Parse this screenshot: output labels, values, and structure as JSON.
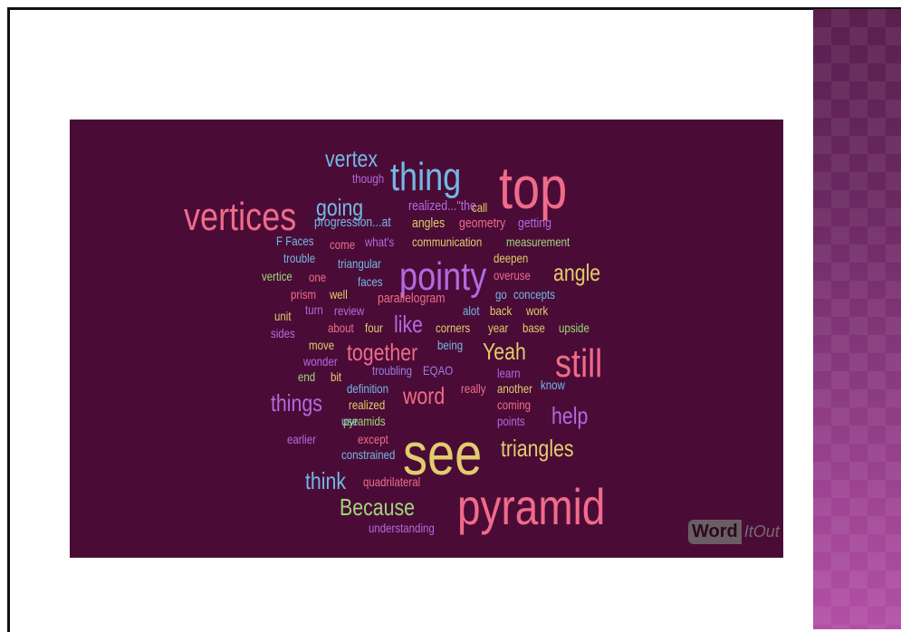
{
  "colors": {
    "background": "#ffffff",
    "cloud_bg": "#4a0c36",
    "pink": "#f06b8a",
    "blue": "#74b8e6",
    "purple": "#b36ae0",
    "yellow": "#e2cc6e",
    "green": "#9ed67a",
    "violet": "#9b7ee6"
  },
  "logo": {
    "word": "Word",
    "it_out": "ItOut"
  },
  "words": [
    {
      "text": "vertex",
      "color": "#74b8e6",
      "size": 26
    },
    {
      "text": "thing",
      "color": "#74b8e6",
      "size": 44
    },
    {
      "text": "top",
      "color": "#f06b8a",
      "size": 66
    },
    {
      "text": "though",
      "color": "#b36ae0",
      "size": 14
    },
    {
      "text": "vertices",
      "color": "#f06b8a",
      "size": 44
    },
    {
      "text": "going",
      "color": "#74b8e6",
      "size": 26
    },
    {
      "text": "realized...\"the",
      "color": "#b36ae0",
      "size": 15
    },
    {
      "text": "call",
      "color": "#e2cc6e",
      "size": 14
    },
    {
      "text": "progression...at",
      "color": "#74b8e6",
      "size": 15
    },
    {
      "text": "angles",
      "color": "#e2cc6e",
      "size": 15
    },
    {
      "text": "geometry",
      "color": "#f06b8a",
      "size": 15
    },
    {
      "text": "getting",
      "color": "#b36ae0",
      "size": 15
    },
    {
      "text": "F Faces",
      "color": "#74b8e6",
      "size": 14
    },
    {
      "text": "come",
      "color": "#f06b8a",
      "size": 14
    },
    {
      "text": "what's",
      "color": "#b36ae0",
      "size": 14
    },
    {
      "text": "communication",
      "color": "#e2cc6e",
      "size": 14
    },
    {
      "text": "measurement",
      "color": "#9ed67a",
      "size": 14
    },
    {
      "text": "trouble",
      "color": "#74b8e6",
      "size": 14
    },
    {
      "text": "triangular",
      "color": "#74b8e6",
      "size": 14
    },
    {
      "text": "deepen",
      "color": "#e2cc6e",
      "size": 14
    },
    {
      "text": "pointy",
      "color": "#b36ae0",
      "size": 44
    },
    {
      "text": "angle",
      "color": "#e2cc6e",
      "size": 26
    },
    {
      "text": "vertice",
      "color": "#9ed67a",
      "size": 14
    },
    {
      "text": "one",
      "color": "#f06b8a",
      "size": 14
    },
    {
      "text": "faces",
      "color": "#74b8e6",
      "size": 14
    },
    {
      "text": "overuse",
      "color": "#f06b8a",
      "size": 14
    },
    {
      "text": "prism",
      "color": "#f06b8a",
      "size": 14
    },
    {
      "text": "well",
      "color": "#e2cc6e",
      "size": 14
    },
    {
      "text": "parallelogram",
      "color": "#f06b8a",
      "size": 15
    },
    {
      "text": "go",
      "color": "#74b8e6",
      "size": 14
    },
    {
      "text": "concepts",
      "color": "#74b8e6",
      "size": 14
    },
    {
      "text": "unit",
      "color": "#e2cc6e",
      "size": 14
    },
    {
      "text": "turn",
      "color": "#b36ae0",
      "size": 14
    },
    {
      "text": "review",
      "color": "#b36ae0",
      "size": 14
    },
    {
      "text": "alot",
      "color": "#74b8e6",
      "size": 14
    },
    {
      "text": "back",
      "color": "#e2cc6e",
      "size": 14
    },
    {
      "text": "work",
      "color": "#e2cc6e",
      "size": 14
    },
    {
      "text": "sides",
      "color": "#b36ae0",
      "size": 14
    },
    {
      "text": "about",
      "color": "#f06b8a",
      "size": 14
    },
    {
      "text": "four",
      "color": "#e2cc6e",
      "size": 14
    },
    {
      "text": "like",
      "color": "#b36ae0",
      "size": 26
    },
    {
      "text": "corners",
      "color": "#e2cc6e",
      "size": 14
    },
    {
      "text": "year",
      "color": "#e2cc6e",
      "size": 14
    },
    {
      "text": "base",
      "color": "#e2cc6e",
      "size": 14
    },
    {
      "text": "upside",
      "color": "#9ed67a",
      "size": 14
    },
    {
      "text": "move",
      "color": "#e2cc6e",
      "size": 14
    },
    {
      "text": "together",
      "color": "#f06b8a",
      "size": 26
    },
    {
      "text": "being",
      "color": "#74b8e6",
      "size": 14
    },
    {
      "text": "Yeah",
      "color": "#e2cc6e",
      "size": 26
    },
    {
      "text": "still",
      "color": "#f06b8a",
      "size": 44
    },
    {
      "text": "wonder",
      "color": "#b36ae0",
      "size": 14
    },
    {
      "text": "end",
      "color": "#9ed67a",
      "size": 14
    },
    {
      "text": "bit",
      "color": "#e2cc6e",
      "size": 14
    },
    {
      "text": "troubling",
      "color": "#9b7ee6",
      "size": 14
    },
    {
      "text": "EQAO",
      "color": "#9b7ee6",
      "size": 14
    },
    {
      "text": "learn",
      "color": "#b36ae0",
      "size": 14
    },
    {
      "text": "definition",
      "color": "#74b8e6",
      "size": 14
    },
    {
      "text": "really",
      "color": "#f06b8a",
      "size": 14
    },
    {
      "text": "another",
      "color": "#e2cc6e",
      "size": 14
    },
    {
      "text": "know",
      "color": "#74b8e6",
      "size": 14
    },
    {
      "text": "things",
      "color": "#b36ae0",
      "size": 26
    },
    {
      "text": "realized",
      "color": "#e2cc6e",
      "size": 14
    },
    {
      "text": "word",
      "color": "#f06b8a",
      "size": 26
    },
    {
      "text": "coming",
      "color": "#f06b8a",
      "size": 14
    },
    {
      "text": "help",
      "color": "#b36ae0",
      "size": 26
    },
    {
      "text": "use",
      "color": "#74b8e6",
      "size": 14
    },
    {
      "text": "pyramids",
      "color": "#9ed67a",
      "size": 14
    },
    {
      "text": "points",
      "color": "#b36ae0",
      "size": 14
    },
    {
      "text": "earlier",
      "color": "#b36ae0",
      "size": 14
    },
    {
      "text": "except",
      "color": "#f06b8a",
      "size": 14
    },
    {
      "text": "see",
      "color": "#e2cc6e",
      "size": 66
    },
    {
      "text": "triangles",
      "color": "#e2cc6e",
      "size": 26
    },
    {
      "text": "constrained",
      "color": "#74b8e6",
      "size": 14
    },
    {
      "text": "think",
      "color": "#74b8e6",
      "size": 26
    },
    {
      "text": "quadrilateral",
      "color": "#f06b8a",
      "size": 14
    },
    {
      "text": "pyramid",
      "color": "#f06b8a",
      "size": 56
    },
    {
      "text": "Because",
      "color": "#9ed67a",
      "size": 26
    },
    {
      "text": "understanding",
      "color": "#b36ae0",
      "size": 14
    }
  ]
}
